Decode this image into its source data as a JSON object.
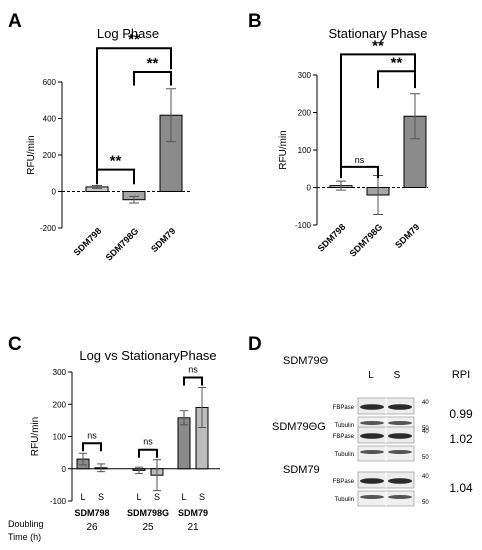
{
  "panel_letters": [
    "A",
    "B",
    "C",
    "D"
  ],
  "chart_data": [
    {
      "panel": "A",
      "type": "bar",
      "title": "Log Phase",
      "ylabel": "RFU/min",
      "categories": [
        "SDM798",
        "SDM798G",
        "SDM79"
      ],
      "values": [
        25,
        -45,
        418
      ],
      "errors": [
        8,
        18,
        145
      ],
      "colors": [
        "#c8c8c8",
        "#a5a5a5",
        "#8b8b8b"
      ],
      "ylim": [
        -200,
        600
      ],
      "yticks": [
        "-200",
        "0",
        "200",
        "400",
        "600"
      ],
      "significance": [
        {
          "from": 0,
          "to": 1,
          "label": "**"
        },
        {
          "from": 1,
          "to": 2,
          "label": "**"
        },
        {
          "from": 0,
          "to": 2,
          "label": "**"
        }
      ]
    },
    {
      "panel": "B",
      "type": "bar",
      "title": "Stationary Phase",
      "ylabel": "RFU/min",
      "categories": [
        "SDM798",
        "SDM798G",
        "SDM79"
      ],
      "values": [
        5,
        -20,
        190
      ],
      "errors": [
        12,
        52,
        60
      ],
      "colors": [
        "#c8c8c8",
        "#a5a5a5",
        "#8b8b8b"
      ],
      "ylim": [
        -100,
        300
      ],
      "yticks": [
        "-100",
        "0",
        "100",
        "200",
        "300"
      ],
      "significance": [
        {
          "from": 0,
          "to": 1,
          "label": "ns"
        },
        {
          "from": 1,
          "to": 2,
          "label": "**"
        },
        {
          "from": 0,
          "to": 2,
          "label": "**"
        }
      ]
    },
    {
      "panel": "C",
      "type": "bar",
      "title": "Log vs StationaryPhase",
      "ylabel": "RFU/min",
      "groups": [
        "SDM798",
        "SDM798G",
        "SDM79"
      ],
      "series": [
        {
          "name": "L",
          "values": [
            30,
            -5,
            158
          ],
          "errors": [
            18,
            10,
            22
          ],
          "color": "#8b8b8b"
        },
        {
          "name": "S",
          "values": [
            3,
            -20,
            190
          ],
          "errors": [
            12,
            48,
            62
          ],
          "color": "#bdbdbd"
        }
      ],
      "ylim": [
        -100,
        300
      ],
      "yticks": [
        "-100",
        "0",
        "100",
        "200",
        "300"
      ],
      "significance": [
        "ns",
        "ns",
        "ns"
      ],
      "doubling_label": [
        "Doubling",
        "Time (h)"
      ],
      "doubling_times": [
        "26",
        "25",
        "21"
      ]
    }
  ],
  "blot_panel": {
    "lane_headers": [
      "L",
      "S"
    ],
    "rpi_header": "RPI",
    "rows": [
      {
        "strain": "SDM79Θ",
        "rpi": "0.99"
      },
      {
        "strain": "SDM79ΘG",
        "rpi": "1.02"
      },
      {
        "strain": "SDM79",
        "rpi": "1.04"
      }
    ],
    "band_labels": [
      "FBPase",
      "Tubulin"
    ],
    "markers": [
      "40",
      "50"
    ]
  }
}
